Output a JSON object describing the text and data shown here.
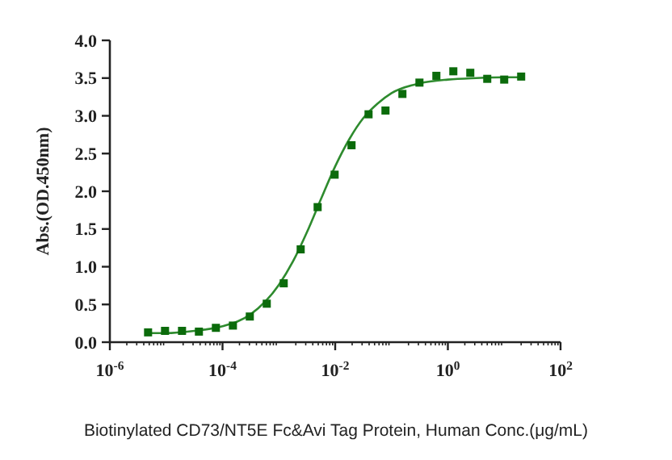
{
  "chart_data": {
    "type": "scatter",
    "xlabel": "Biotinylated CD73/NT5E Fc&Avi Tag Protein, Human Conc.(μg/mL)",
    "ylabel": "Abs.(OD.450nm)",
    "log": "x",
    "xlim": [
      1e-06,
      100
    ],
    "xticks": [
      {
        "value": 1e-06,
        "label": "10$^{-6}$"
      },
      {
        "value": 0.0001,
        "label": "10$^{-4}$"
      },
      {
        "value": 0.01,
        "label": "10$^{-2}$"
      },
      {
        "value": 1,
        "label": "10$^{0}$"
      },
      {
        "value": 100,
        "label": "10$^{2}$"
      }
    ],
    "ylim": [
      0,
      4
    ],
    "yticks": [
      {
        "value": 0,
        "label": "0.0"
      },
      {
        "value": 0.5,
        "label": "0.5"
      },
      {
        "value": 1,
        "label": "1.0"
      },
      {
        "value": 1.5,
        "label": "1.5"
      },
      {
        "value": 2,
        "label": "2.0"
      },
      {
        "value": 2.5,
        "label": "2.5"
      },
      {
        "value": 3,
        "label": "3.0"
      },
      {
        "value": 3.5,
        "label": "3.5"
      },
      {
        "value": 4,
        "label": "4.0"
      }
    ],
    "series": [
      {
        "marker": "square",
        "color": "#0b6b0b",
        "x": [
          4.77e-06,
          9.54e-06,
          1.91e-05,
          3.81e-05,
          7.63e-05,
          0.000153,
          0.000305,
          0.00061,
          0.00122,
          0.00244,
          0.00488,
          0.00977,
          0.0195,
          0.0391,
          0.0781,
          0.156,
          0.313,
          0.625,
          1.25,
          2.5,
          5,
          10,
          20
        ],
        "values": [
          0.13,
          0.15,
          0.15,
          0.14,
          0.19,
          0.22,
          0.34,
          0.51,
          0.78,
          1.23,
          1.79,
          2.22,
          2.61,
          3.02,
          3.07,
          3.29,
          3.44,
          3.53,
          3.59,
          3.57,
          3.49,
          3.48,
          3.52
        ]
      },
      {
        "type": "line",
        "marker": "none",
        "color": "#2e8b2e",
        "x": [
          4.77e-06,
          1e-05,
          3.16e-05,
          0.0001,
          0.000316,
          0.001,
          0.00178,
          0.00316,
          0.00562,
          0.01,
          0.0178,
          0.0316,
          0.0562,
          0.1,
          0.316,
          1,
          3.16,
          10,
          20
        ],
        "values": [
          0.12,
          0.12,
          0.15,
          0.21,
          0.37,
          0.76,
          1.07,
          1.46,
          1.9,
          2.33,
          2.69,
          2.97,
          3.16,
          3.3,
          3.43,
          3.48,
          3.5,
          3.51,
          3.51
        ]
      }
    ]
  }
}
